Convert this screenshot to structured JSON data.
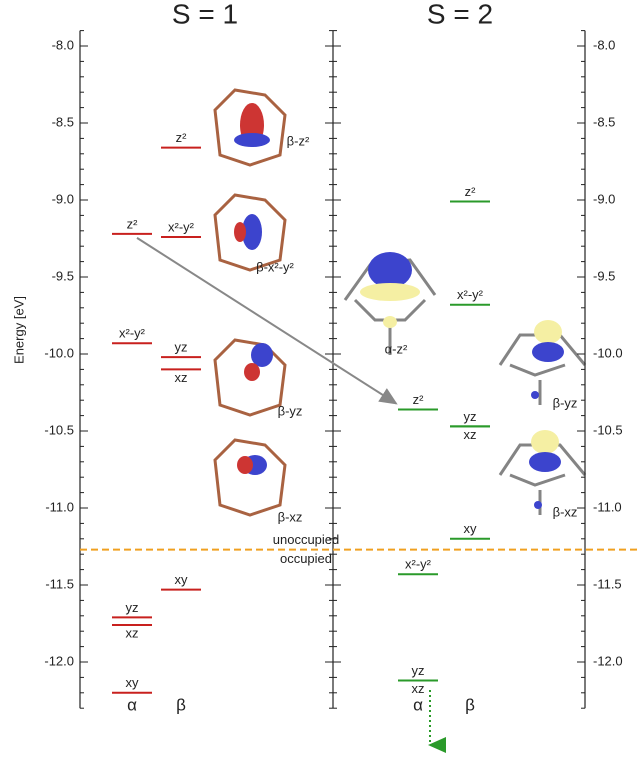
{
  "chart_data": {
    "type": "energy_levels",
    "y_label": "Energy [eV]",
    "ylim": [
      -12.3,
      -7.9
    ],
    "yticks": [
      {
        "value": -8,
        "label": "-8.0"
      },
      {
        "value": -8.5,
        "label": "-8.5"
      },
      {
        "value": -9,
        "label": "-9.0"
      },
      {
        "value": -9.5,
        "label": "-9.5"
      },
      {
        "value": -10,
        "label": "-10.0"
      },
      {
        "value": -10.5,
        "label": "-10.5"
      },
      {
        "value": -11,
        "label": "-11.0"
      },
      {
        "value": -11.5,
        "label": "-11.5"
      },
      {
        "value": -12,
        "label": "-12.0"
      }
    ],
    "minor_yticks": [
      -7.9,
      -8.1,
      -8.2,
      -8.3,
      -8.4,
      -8.6,
      -8.7,
      -8.8,
      -8.9,
      -9.1,
      -9.2,
      -9.3,
      -9.4,
      -9.6,
      -9.7,
      -9.8,
      -9.9,
      -10.1,
      -10.2,
      -10.3,
      -10.4,
      -10.6,
      -10.7,
      -10.8,
      -10.9,
      -11.1,
      -11.2,
      -11.3,
      -11.4,
      -11.6,
      -11.7,
      -11.8,
      -11.9,
      -12.1,
      -12.2,
      -12.3
    ],
    "panels": [
      {
        "title": "S = 1",
        "color": "#c8201e",
        "columns": [
          {
            "name": "α",
            "levels": [
              {
                "label": "z²",
                "value": -9.22,
                "label_side": "above"
              },
              {
                "label": "x²-y²",
                "value": -9.93,
                "label_side": "above"
              },
              {
                "label": "yz",
                "value": -11.71,
                "label_side": "above"
              },
              {
                "label": "xz",
                "value": -11.76,
                "label_side": "below"
              },
              {
                "label": "xy",
                "value": -12.2,
                "label_side": "above"
              }
            ]
          },
          {
            "name": "β",
            "levels": [
              {
                "label": "z²",
                "value": -8.66,
                "label_side": "above"
              },
              {
                "label": "x²-y²",
                "value": -9.24,
                "label_side": "above"
              },
              {
                "label": "yz",
                "value": -10.02,
                "label_side": "above"
              },
              {
                "label": "xz",
                "value": -10.1,
                "label_side": "below"
              },
              {
                "label": "xy",
                "value": -11.53,
                "label_side": "above"
              }
            ]
          }
        ]
      },
      {
        "title": "S = 2",
        "color": "#2a9a2a",
        "columns": [
          {
            "name": "α",
            "levels": [
              {
                "label": "z²",
                "value": -10.36,
                "label_side": "above"
              },
              {
                "label": "x²-y²",
                "value": -11.43,
                "label_side": "above"
              },
              {
                "label": "yz",
                "value": -12.12,
                "label_side": "above"
              },
              {
                "label": "xz",
                "value": -12.12,
                "label_side": "below"
              }
            ]
          },
          {
            "name": "β",
            "levels": [
              {
                "label": "z²",
                "value": -9.01,
                "label_side": "above"
              },
              {
                "label": "x²-y²",
                "value": -9.68,
                "label_side": "above"
              },
              {
                "label": "yz",
                "value": -10.47,
                "label_side": "above"
              },
              {
                "label": "xz",
                "value": -10.47,
                "label_side": "below"
              },
              {
                "label": "xy",
                "value": -11.2,
                "label_side": "above"
              }
            ]
          }
        ]
      }
    ],
    "separator": {
      "value": -11.27,
      "color": "#f0a020",
      "labels": [
        "unoccupied",
        "occupied"
      ]
    },
    "annotations": [
      "β-z²",
      "β-x²-y²",
      "β-yz",
      "β-xz",
      "α-z²",
      "β-yz",
      "β-xz"
    ]
  }
}
